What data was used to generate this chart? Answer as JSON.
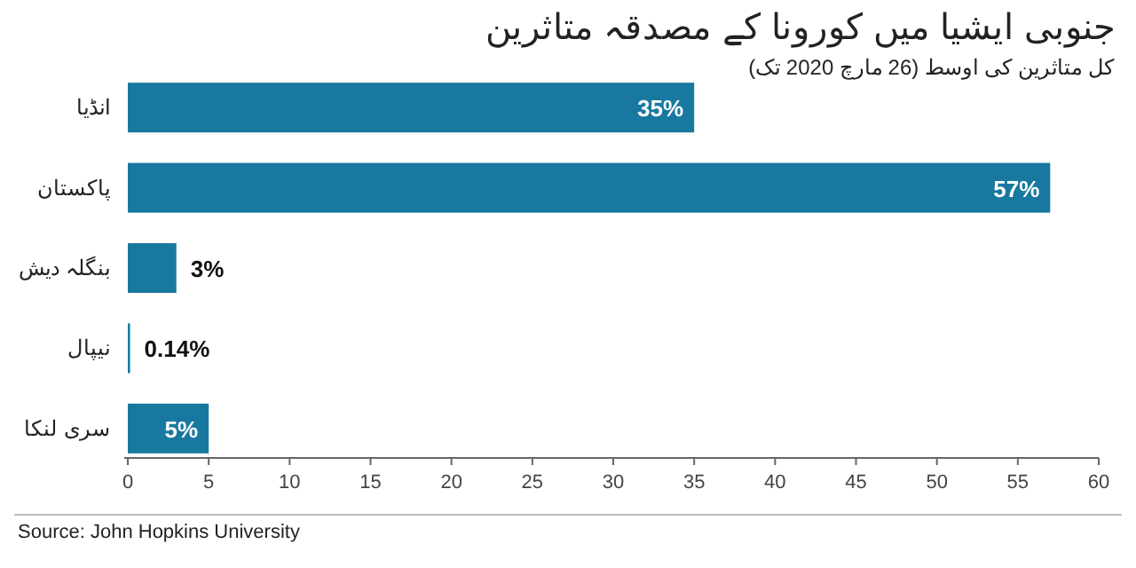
{
  "chart_data": {
    "type": "bar",
    "orientation": "horizontal",
    "title": "جنوبی ایشیا میں کورونا کے مصدقہ متاثرین",
    "subtitle": "کل متاثرین کی اوسط (26 مارچ 2020 تک)",
    "categories": [
      "انڈیا",
      "پاکستان",
      "بنگلہ دیش",
      "نیپال",
      "سری لنکا"
    ],
    "values": [
      35,
      57,
      3,
      0.14,
      5
    ],
    "value_labels": [
      "35%",
      "57%",
      "3%",
      "0.14%",
      "5%"
    ],
    "color": "#1878a0",
    "xlim": [
      0,
      60
    ],
    "xticks": [
      0,
      5,
      10,
      15,
      20,
      25,
      30,
      35,
      40,
      45,
      50,
      55,
      60
    ],
    "grid": false,
    "annotations": [
      "Source: John Hopkins University"
    ]
  }
}
